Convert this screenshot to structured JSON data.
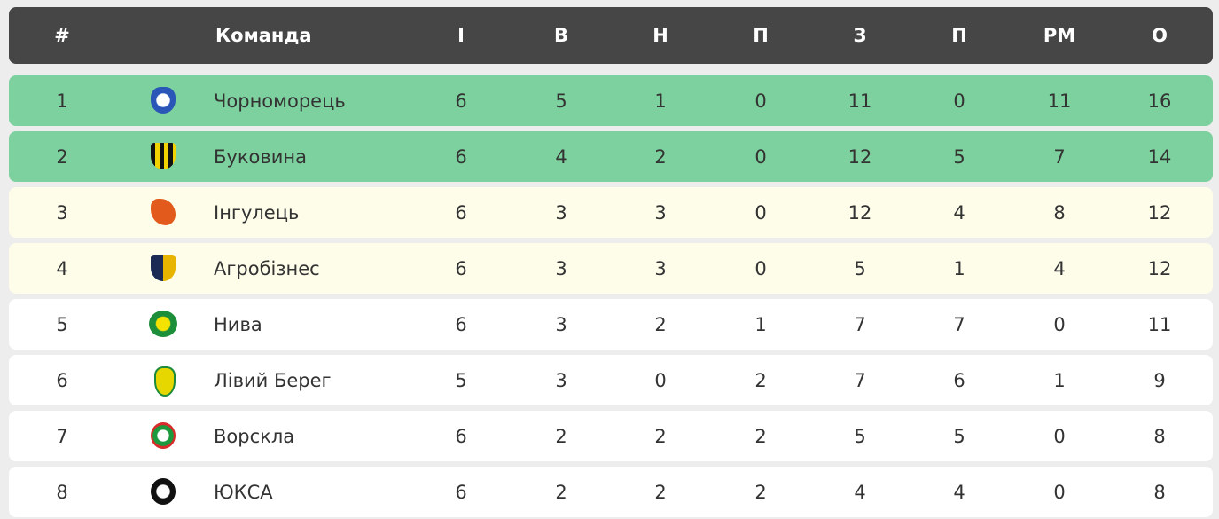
{
  "table": {
    "header": [
      "#",
      "Команда",
      "І",
      "В",
      "Н",
      "П",
      "З",
      "П",
      "РМ",
      "О"
    ],
    "rows": [
      [
        1,
        "Чорноморець",
        6,
        5,
        1,
        0,
        11,
        0,
        11,
        16
      ],
      [
        2,
        "Буковина",
        6,
        4,
        2,
        0,
        12,
        5,
        7,
        14
      ],
      [
        3,
        "Інгулець",
        6,
        3,
        3,
        0,
        12,
        4,
        8,
        12
      ],
      [
        4,
        "Агробізнес",
        6,
        3,
        3,
        0,
        5,
        1,
        4,
        12
      ],
      [
        5,
        "Нива",
        6,
        3,
        2,
        1,
        7,
        7,
        0,
        11
      ],
      [
        6,
        "Лівий Берег",
        5,
        3,
        0,
        2,
        7,
        6,
        1,
        9
      ],
      [
        7,
        "Ворскла",
        6,
        2,
        2,
        2,
        5,
        5,
        0,
        8
      ],
      [
        8,
        "ЮКСА",
        6,
        2,
        2,
        2,
        4,
        4,
        0,
        8
      ]
    ]
  }
}
